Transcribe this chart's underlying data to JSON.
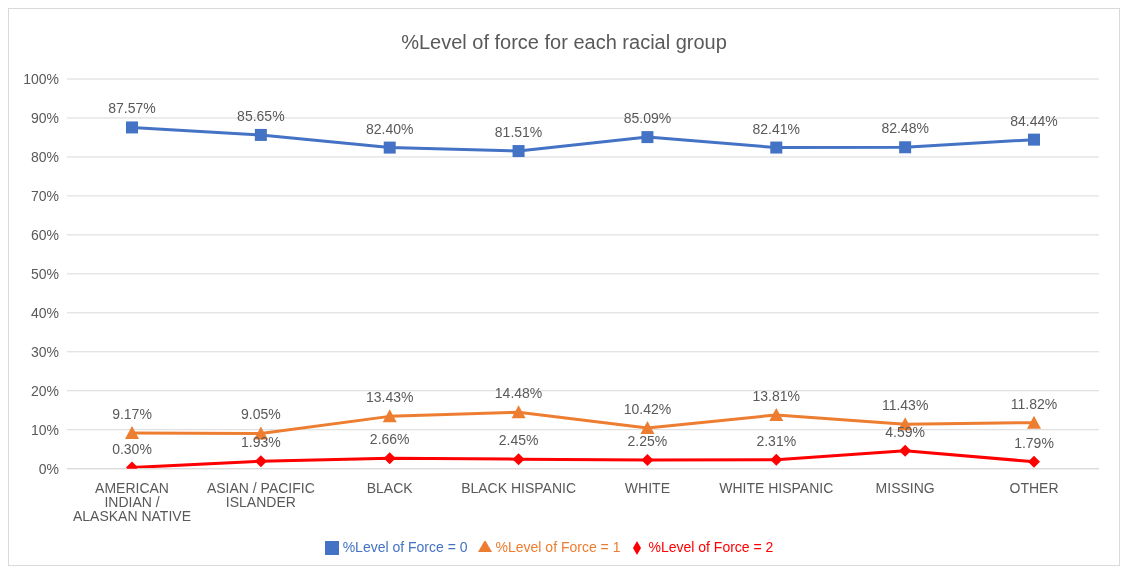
{
  "chart_data": {
    "type": "line",
    "title": "%Level of force for each racial group",
    "categories": [
      "AMERICAN INDIAN / ALASKAN NATIVE",
      "ASIAN / PACIFIC ISLANDER",
      "BLACK",
      "BLACK HISPANIC",
      "WHITE",
      "WHITE HISPANIC",
      "MISSING",
      "OTHER"
    ],
    "series": [
      {
        "name": "%Level of Force = 0",
        "color": "#4472c4",
        "marker": "square",
        "values": [
          87.57,
          85.65,
          82.4,
          81.51,
          85.09,
          82.41,
          82.48,
          84.44
        ],
        "value_labels": [
          "87.57%",
          "85.65%",
          "82.40%",
          "81.51%",
          "85.09%",
          "82.41%",
          "82.48%",
          "84.44%"
        ]
      },
      {
        "name": "%Level of Force = 1",
        "color": "#ed7d31",
        "marker": "triangle",
        "values": [
          9.17,
          9.05,
          13.43,
          14.48,
          10.42,
          13.81,
          11.43,
          11.82
        ],
        "value_labels": [
          "9.17%",
          "9.05%",
          "13.43%",
          "14.48%",
          "10.42%",
          "13.81%",
          "11.43%",
          "11.82%"
        ]
      },
      {
        "name": "%Level of Force = 2",
        "color": "#ff0000",
        "marker": "diamond",
        "values": [
          0.3,
          1.93,
          2.66,
          2.45,
          2.25,
          2.31,
          4.59,
          1.79
        ],
        "value_labels": [
          "0.30%",
          "1.93%",
          "2.66%",
          "2.45%",
          "2.25%",
          "2.31%",
          "4.59%",
          "1.79%"
        ]
      }
    ],
    "ylim": [
      0,
      100
    ],
    "yticks": [
      {
        "value": 0,
        "label": "0%"
      },
      {
        "value": 10,
        "label": "10%"
      },
      {
        "value": 20,
        "label": "20%"
      },
      {
        "value": 30,
        "label": "30%"
      },
      {
        "value": 40,
        "label": "40%"
      },
      {
        "value": 50,
        "label": "50%"
      },
      {
        "value": 60,
        "label": "60%"
      },
      {
        "value": 70,
        "label": "70%"
      },
      {
        "value": 80,
        "label": "80%"
      },
      {
        "value": 90,
        "label": "90%"
      },
      {
        "value": 100,
        "label": "100%"
      }
    ],
    "grid": "y",
    "legend": "bottom",
    "line_style": "solid"
  }
}
